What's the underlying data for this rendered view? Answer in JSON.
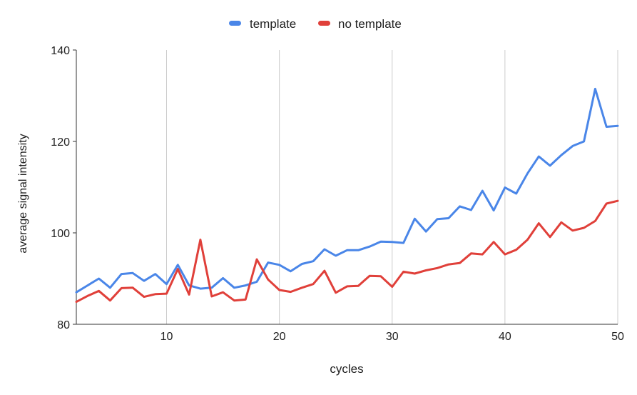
{
  "chart_data": {
    "type": "line",
    "title": "",
    "xlabel": "cycles",
    "ylabel": "average signal intensity",
    "xlim": [
      2,
      50
    ],
    "ylim": [
      80,
      140
    ],
    "xticks": [
      10,
      20,
      30,
      40,
      50
    ],
    "yticks": [
      80,
      100,
      120,
      140
    ],
    "xtick_labels": [
      "10",
      "20",
      "30",
      "40",
      "50"
    ],
    "ytick_labels": [
      "80",
      "100",
      "120",
      "140"
    ],
    "grid": "vertical",
    "legend_position": "top",
    "x": [
      2,
      3,
      4,
      5,
      6,
      7,
      8,
      9,
      10,
      11,
      12,
      13,
      14,
      15,
      16,
      17,
      18,
      19,
      20,
      21,
      22,
      23,
      24,
      25,
      26,
      27,
      28,
      29,
      30,
      31,
      32,
      33,
      34,
      35,
      36,
      37,
      38,
      39,
      40,
      41,
      42,
      43,
      44,
      45,
      46,
      47,
      48,
      49,
      50
    ],
    "series": [
      {
        "name": "template",
        "color": "#4a86e8",
        "values": [
          87.0,
          88.5,
          90.0,
          88.0,
          91.0,
          91.2,
          89.5,
          91.0,
          88.8,
          93.0,
          88.5,
          87.8,
          88.0,
          90.1,
          88.0,
          88.5,
          89.3,
          93.5,
          93.0,
          91.6,
          93.2,
          93.8,
          96.4,
          95.0,
          96.2,
          96.2,
          97.0,
          98.1,
          98.0,
          97.8,
          103.1,
          100.3,
          103.0,
          103.2,
          105.8,
          105.0,
          109.2,
          104.9,
          109.9,
          108.6,
          113.0,
          116.7,
          114.7,
          117.0,
          119.0,
          120.0,
          131.5,
          123.2,
          123.4
        ]
      },
      {
        "name": "no template",
        "color": "#e0403a",
        "values": [
          84.9,
          86.2,
          87.3,
          85.2,
          87.9,
          88.0,
          86.0,
          86.6,
          86.7,
          92.1,
          86.5,
          98.5,
          86.1,
          87.0,
          85.2,
          85.4,
          94.2,
          89.8,
          87.5,
          87.1,
          88.0,
          88.8,
          91.7,
          86.9,
          88.3,
          88.4,
          90.6,
          90.5,
          88.2,
          91.5,
          91.1,
          91.8,
          92.3,
          93.1,
          93.4,
          95.5,
          95.3,
          98.0,
          95.3,
          96.3,
          98.5,
          102.1,
          99.1,
          102.3,
          100.5,
          101.1,
          102.6,
          106.4,
          107.0
        ]
      }
    ]
  }
}
